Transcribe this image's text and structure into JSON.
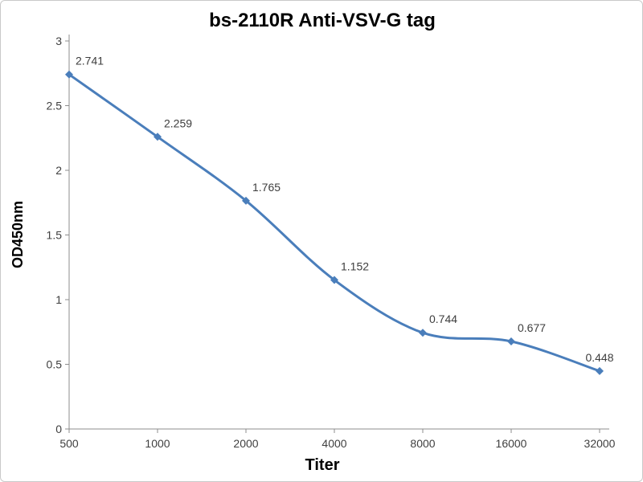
{
  "chart_data": {
    "type": "line",
    "title": "bs-2110R Anti-VSV-G tag",
    "xlabel": "Titer",
    "ylabel": "OD450nm",
    "categories": [
      "500",
      "1000",
      "2000",
      "4000",
      "8000",
      "16000",
      "32000"
    ],
    "series": [
      {
        "name": "OD450nm",
        "values": [
          2.741,
          2.259,
          1.765,
          1.152,
          0.744,
          0.677,
          0.448
        ],
        "point_labels": [
          "2.741",
          "2.259",
          "1.765",
          "1.152",
          "0.744",
          "0.677",
          "0.448"
        ]
      }
    ],
    "ylim": [
      0,
      3
    ],
    "yticks": [
      "0",
      "0.5",
      "1",
      "1.5",
      "2",
      "2.5",
      "3"
    ],
    "grid": false,
    "legend": "none",
    "line_color": "#4A7EBB",
    "marker": "diamond",
    "axis_color": "#8c8c8c",
    "text_color": "#3f3f3f",
    "background_color": "#ffffff"
  }
}
